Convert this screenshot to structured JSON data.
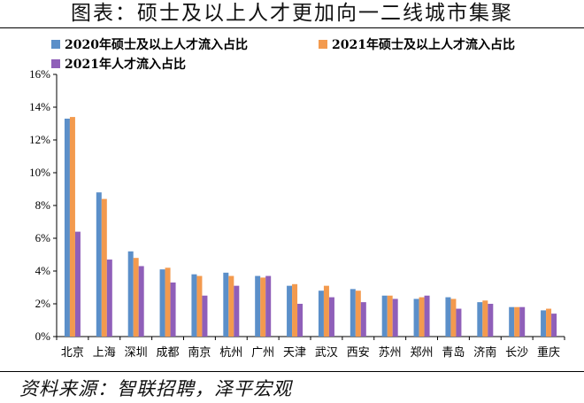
{
  "title": "图表：硕士及以上人才更加向一二线城市集聚",
  "source": "资料来源：智联招聘，泽平宏观",
  "chart_data": {
    "type": "bar",
    "categories": [
      "北京",
      "上海",
      "深圳",
      "成都",
      "南京",
      "杭州",
      "广州",
      "天津",
      "武汉",
      "西安",
      "苏州",
      "郑州",
      "青岛",
      "济南",
      "长沙",
      "重庆"
    ],
    "series": [
      {
        "name": "2020年硕士及以上人才流入占比",
        "color": "#5b8fc9",
        "values": [
          13.3,
          8.8,
          5.2,
          4.1,
          3.8,
          3.9,
          3.7,
          3.1,
          2.8,
          2.9,
          2.5,
          2.3,
          2.4,
          2.1,
          1.8,
          1.6
        ]
      },
      {
        "name": "2021年硕士及以上人才流入占比",
        "color": "#f39a4e",
        "values": [
          13.4,
          8.4,
          4.8,
          4.2,
          3.7,
          3.7,
          3.6,
          3.2,
          3.1,
          2.8,
          2.5,
          2.4,
          2.3,
          2.2,
          1.8,
          1.7
        ]
      },
      {
        "name": "2021年人才流入占比",
        "color": "#8f5fb9",
        "values": [
          6.4,
          4.7,
          4.3,
          3.3,
          2.5,
          3.1,
          3.7,
          2.0,
          2.4,
          2.1,
          2.3,
          2.5,
          1.7,
          2.0,
          1.8,
          1.4
        ]
      }
    ],
    "ylim": [
      0,
      16
    ],
    "yticks": [
      0,
      2,
      4,
      6,
      8,
      10,
      12,
      14,
      16
    ],
    "ytick_labels": [
      "0%",
      "2%",
      "4%",
      "6%",
      "8%",
      "10%",
      "12%",
      "14%",
      "16%"
    ],
    "legend_position": "top",
    "grid": false,
    "xlabel": "",
    "ylabel": ""
  }
}
